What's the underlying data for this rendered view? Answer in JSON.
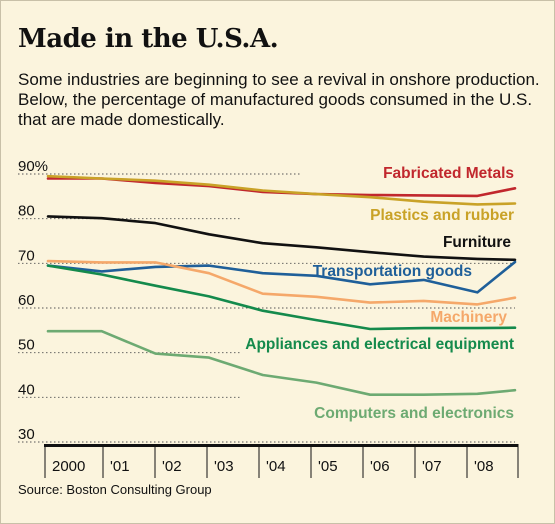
{
  "header": {
    "title": "Made in the U.S.A.",
    "subtitle": "Some industries are beginning to see a revival in onshore production. Below, the percentage of manufactured goods consumed in the U.S. that are made domestically."
  },
  "source": "Source: Boston Consulting Group",
  "colors": {
    "background": "#fbf4dd",
    "tick_bar": "#111111",
    "axis_text": "#111111"
  },
  "chart_data": {
    "type": "line",
    "title": "Made in the U.S.A.",
    "xlabel": "",
    "ylabel": "",
    "x": [
      2000,
      2001,
      2002,
      2003,
      2004,
      2005,
      2006,
      2007,
      2008,
      2008.7
    ],
    "x_ticks": [
      "2000",
      "'01",
      "'02",
      "'03",
      "'04",
      "'05",
      "'06",
      "'07",
      "'08"
    ],
    "y_ticks": [
      30,
      40,
      50,
      60,
      70,
      80,
      90
    ],
    "y_tick_labels": [
      "30",
      "40",
      "50",
      "60",
      "70",
      "80",
      "90%"
    ],
    "ylim": [
      30,
      92
    ],
    "grid": "dotted horizontal",
    "legend": "direct labels",
    "series": [
      {
        "name": "Fabricated Metals",
        "color": "#c1272d",
        "values": [
          89,
          89,
          88,
          87.3,
          86,
          85.5,
          85.3,
          85.2,
          85.1,
          86.8
        ]
      },
      {
        "name": "Plastics and rubber",
        "color": "#c9a227",
        "values": [
          89.5,
          89,
          88.5,
          87.6,
          86.3,
          85.5,
          84.8,
          83.8,
          83.2,
          83.4
        ]
      },
      {
        "name": "Furniture",
        "color": "#111111",
        "values": [
          80.5,
          80.1,
          79,
          76.5,
          74.5,
          73.6,
          72.5,
          71.5,
          71,
          70.8
        ]
      },
      {
        "name": "Transportation goods",
        "color": "#1f5f99",
        "values": [
          69.5,
          68.2,
          69.2,
          69.5,
          67.8,
          67.2,
          65.3,
          66.3,
          63.5,
          70.3
        ]
      },
      {
        "name": "Machinery",
        "color": "#f5a86a",
        "values": [
          70.5,
          70.2,
          70.2,
          67.8,
          63.2,
          62.5,
          61.2,
          61.6,
          60.8,
          62.3
        ]
      },
      {
        "name": "Appliances and electrical equipment",
        "color": "#148a4c",
        "values": [
          69.5,
          67.5,
          65,
          62.6,
          59.4,
          57.3,
          55.3,
          55.5,
          55.5,
          55.6
        ]
      },
      {
        "name": "Computers and electronics",
        "color": "#6daa72",
        "values": [
          54.8,
          54.8,
          49.8,
          48.9,
          45,
          43.3,
          40.6,
          40.6,
          40.8,
          41.6
        ]
      }
    ]
  }
}
